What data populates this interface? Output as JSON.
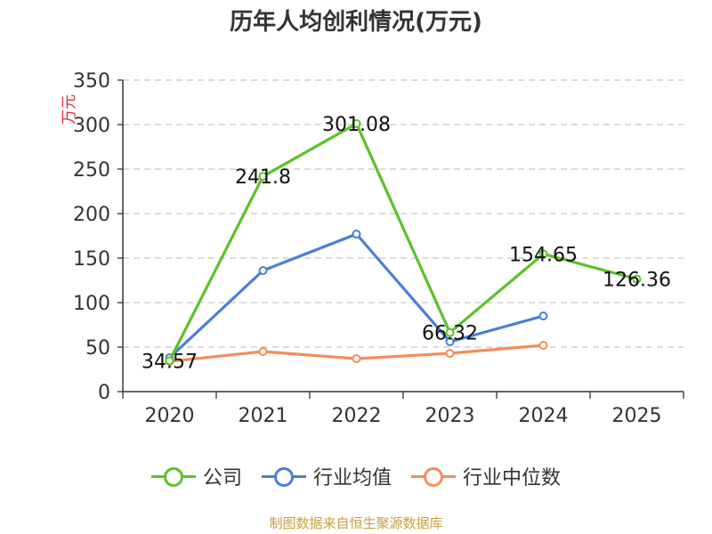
{
  "chart_data": {
    "type": "line",
    "title": "历年人均创利情况(万元)",
    "ylabel": "万元",
    "xlabel": "",
    "categories": [
      "2020",
      "2021",
      "2022",
      "2023",
      "2024",
      "2025"
    ],
    "ylim": [
      0,
      350
    ],
    "yticks": [
      0,
      50,
      100,
      150,
      200,
      250,
      300,
      350
    ],
    "series": [
      {
        "name": "公司",
        "color": "#5ac229",
        "values": [
          34.57,
          241.8,
          301.08,
          66.32,
          154.65,
          126.36
        ],
        "labels": [
          "34.57",
          "241.8",
          "301.08",
          "66.32",
          "154.65",
          "126.36"
        ]
      },
      {
        "name": "行业均值",
        "color": "#4a7fd6",
        "values": [
          38,
          136,
          177,
          56,
          85,
          null
        ]
      },
      {
        "name": "行业中位数",
        "color": "#f28e5a",
        "values": [
          34,
          45,
          37,
          43,
          52,
          null
        ]
      }
    ],
    "source": "制图数据来自恒生聚源数据库",
    "source_color": "#c8a040"
  }
}
